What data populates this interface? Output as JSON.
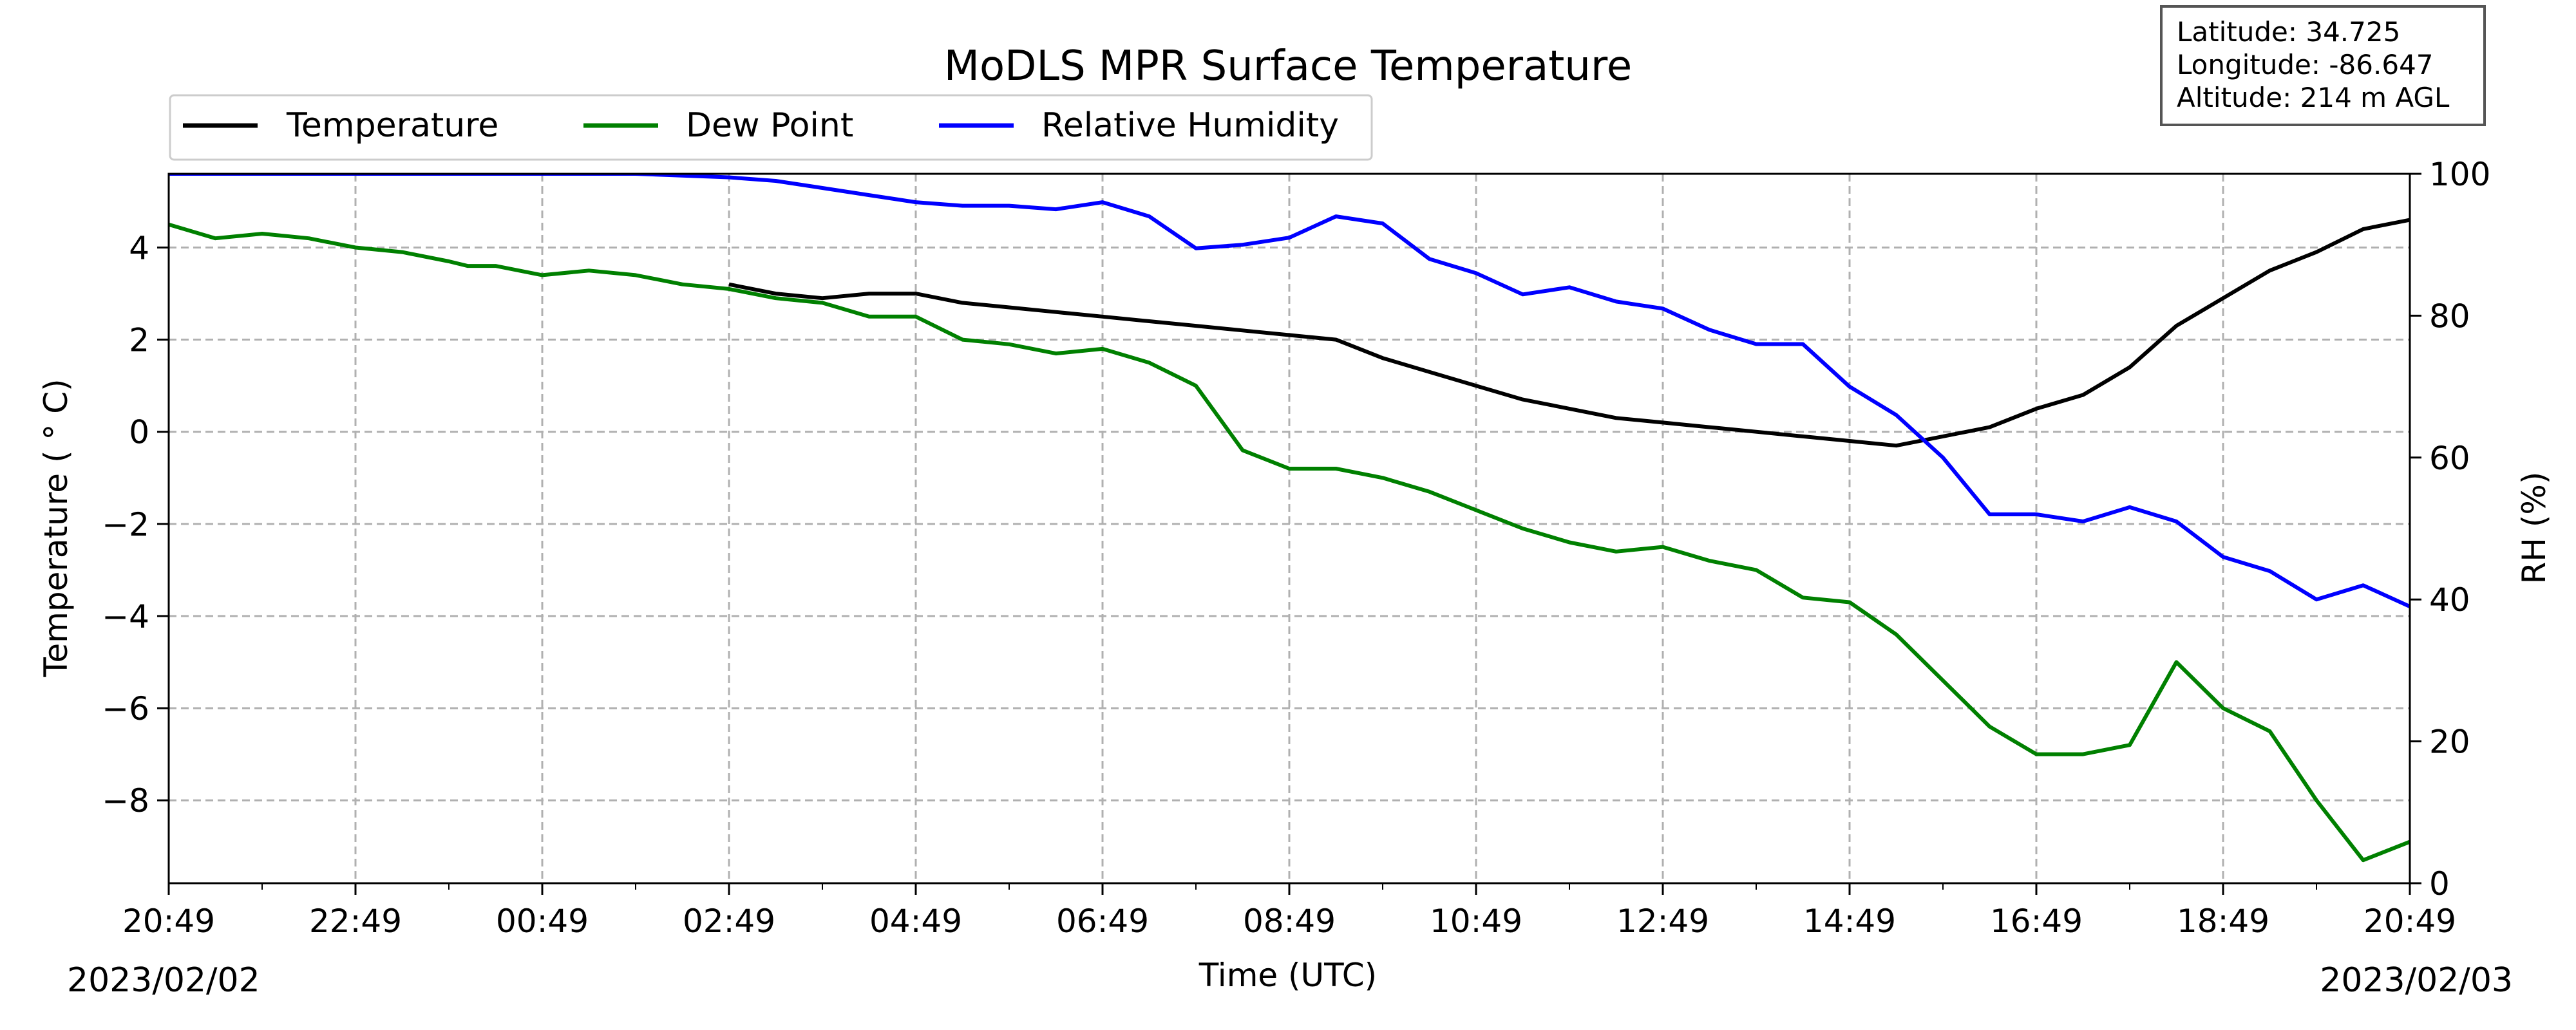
{
  "chart_data": {
    "type": "line",
    "title": "MoDLS MPR Surface Temperature",
    "xlabel": "Time (UTC)",
    "ylabel": "Temperature ( $^\\circ$C)",
    "ylabel_display": "Temperature ( ° C)",
    "y2label": "RH (%)",
    "x_tick_labels": [
      "20:49",
      "22:49",
      "00:49",
      "02:49",
      "04:49",
      "06:49",
      "08:49",
      "10:49",
      "12:49",
      "14:49",
      "16:49",
      "18:49",
      "20:49"
    ],
    "x_tick_hours": [
      0,
      2,
      4,
      6,
      8,
      10,
      12,
      14,
      16,
      18,
      20,
      22,
      24
    ],
    "x_range_hours": [
      0,
      24
    ],
    "start_date": "2023/02/02",
    "end_date": "2023/02/03",
    "y_ticks": [
      4,
      2,
      0,
      -2,
      -4,
      -6,
      -8
    ],
    "y_tick_labels": [
      "4",
      "2",
      "0",
      "−2",
      "−4",
      "−6",
      "−8"
    ],
    "ylim": [
      -9.8,
      5.6
    ],
    "y2_ticks": [
      100,
      80,
      60,
      40,
      20,
      0
    ],
    "y2_tick_labels": [
      "100",
      "80",
      "60",
      "40",
      "20",
      "0"
    ],
    "y2lim": [
      0,
      100
    ],
    "grid": true,
    "legend_position": "top-left",
    "info_box": {
      "latitude": "Latitude: 34.725",
      "longitude": "Longitude: -86.647",
      "altitude": "Altitude: 214 m AGL"
    },
    "series": [
      {
        "name": "Temperature",
        "axis": "left",
        "color": "#000000",
        "x": [
          6.0,
          6.5,
          7.0,
          7.5,
          8.0,
          8.5,
          9.0,
          9.5,
          10.0,
          10.5,
          11.0,
          11.5,
          12.0,
          12.5,
          13.0,
          13.5,
          14.0,
          14.5,
          15.0,
          15.5,
          16.0,
          16.5,
          17.0,
          17.5,
          18.0,
          18.5,
          19.0,
          19.5,
          20.0,
          20.5,
          21.0,
          21.5,
          22.0,
          22.5,
          23.0,
          23.5,
          24.0
        ],
        "y": [
          3.2,
          3.0,
          2.9,
          3.0,
          3.0,
          2.8,
          2.7,
          2.6,
          2.5,
          2.4,
          2.3,
          2.2,
          2.1,
          2.0,
          1.6,
          1.3,
          1.0,
          0.7,
          0.5,
          0.3,
          0.2,
          0.1,
          0.0,
          -0.1,
          -0.2,
          -0.3,
          -0.1,
          0.1,
          0.5,
          0.8,
          1.4,
          2.3,
          2.9,
          3.5,
          3.9,
          4.4,
          4.6
        ]
      },
      {
        "name": "Dew Point",
        "axis": "left",
        "color": "#008000",
        "x": [
          0.0,
          0.5,
          1.0,
          1.5,
          2.0,
          2.5,
          3.0,
          3.2,
          3.5,
          4.0,
          4.5,
          5.0,
          5.5,
          6.0,
          6.5,
          7.0,
          7.5,
          8.0,
          8.5,
          9.0,
          9.5,
          10.0,
          10.5,
          11.0,
          11.5,
          12.0,
          12.5,
          13.0,
          13.5,
          14.0,
          14.5,
          15.0,
          15.5,
          16.0,
          16.5,
          17.0,
          17.5,
          18.0,
          18.5,
          19.0,
          19.5,
          20.0,
          20.5,
          21.0,
          21.5,
          22.0,
          22.5,
          23.0,
          23.5,
          24.0
        ],
        "y": [
          4.5,
          4.2,
          4.3,
          4.2,
          4.0,
          3.9,
          3.7,
          3.6,
          3.6,
          3.4,
          3.5,
          3.4,
          3.2,
          3.1,
          2.9,
          2.8,
          2.5,
          2.5,
          2.0,
          1.9,
          1.7,
          1.8,
          1.5,
          1.0,
          -0.4,
          -0.8,
          -0.8,
          -1.0,
          -1.3,
          -1.7,
          -2.1,
          -2.4,
          -2.6,
          -2.5,
          -2.8,
          -3.0,
          -3.6,
          -3.7,
          -4.4,
          -5.4,
          -6.4,
          -7.0,
          -7.0,
          -6.8,
          -5.0,
          -6.0,
          -6.5,
          -8.0,
          -9.3,
          -8.9
        ]
      },
      {
        "name": "Relative Humidity",
        "axis": "right",
        "color": "#0000ff",
        "x": [
          0.0,
          1.0,
          2.0,
          3.0,
          4.0,
          5.0,
          6.0,
          6.5,
          7.0,
          7.5,
          8.0,
          8.5,
          9.0,
          9.5,
          10.0,
          10.5,
          11.0,
          11.5,
          12.0,
          12.5,
          13.0,
          13.5,
          14.0,
          14.5,
          15.0,
          15.5,
          16.0,
          16.5,
          17.0,
          17.5,
          18.0,
          18.5,
          19.0,
          19.5,
          20.0,
          20.5,
          21.0,
          21.5,
          22.0,
          22.5,
          23.0,
          23.5,
          24.0
        ],
        "y": [
          100,
          100,
          100,
          100,
          100,
          100,
          99.5,
          99.0,
          98.0,
          97.0,
          96.0,
          95.5,
          95.5,
          95.0,
          96.0,
          94.0,
          89.5,
          90.0,
          91.0,
          94.0,
          93.0,
          88.0,
          86.0,
          83.0,
          84.0,
          82.0,
          81.0,
          78.0,
          76.0,
          76.0,
          70.0,
          66.0,
          60.0,
          52.0,
          52.0,
          51.0,
          53.0,
          51.0,
          46.0,
          44.0,
          40.0,
          42.0,
          39.0
        ]
      }
    ]
  }
}
